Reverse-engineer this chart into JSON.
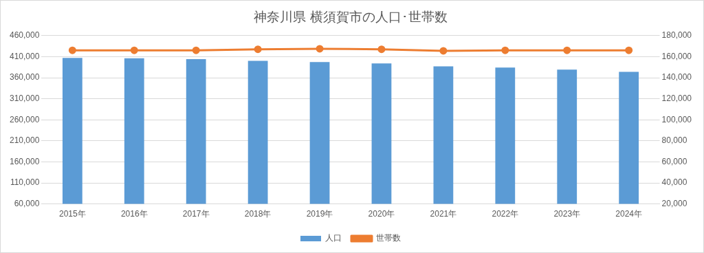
{
  "chart_data": {
    "type": "bar",
    "title": "神奈川県 横須賀市の人口･世帯数",
    "categories": [
      "2015年",
      "2016年",
      "2017年",
      "2018年",
      "2019年",
      "2020年",
      "2021年",
      "2022年",
      "2023年",
      "2024年"
    ],
    "series": [
      {
        "name": "人口",
        "type": "bar",
        "color": "#5b9bd5",
        "values": [
          407000,
          406000,
          404000,
          400000,
          397000,
          394000,
          387000,
          384000,
          379000,
          374000
        ]
      },
      {
        "name": "世帯数",
        "type": "line",
        "axis": "y2",
        "color": "#ed7d31",
        "values": [
          166000,
          166000,
          166000,
          167000,
          167500,
          167000,
          165500,
          166000,
          166000,
          166000
        ]
      }
    ],
    "ylim": [
      60000,
      460000
    ],
    "yticks": [
      {
        "value": 60000,
        "label": "60,000"
      },
      {
        "value": 110000,
        "label": "110,000"
      },
      {
        "value": 160000,
        "label": "160,000"
      },
      {
        "value": 210000,
        "label": "210,000"
      },
      {
        "value": 260000,
        "label": "260,000"
      },
      {
        "value": 310000,
        "label": "310,000"
      },
      {
        "value": 360000,
        "label": "360,000"
      },
      {
        "value": 410000,
        "label": "410,000"
      },
      {
        "value": 460000,
        "label": "460,000"
      }
    ],
    "y2lim": [
      20000,
      180000
    ],
    "y2ticks": [
      {
        "value": 20000,
        "label": "20,000"
      },
      {
        "value": 40000,
        "label": "40,000"
      },
      {
        "value": 60000,
        "label": "60,000"
      },
      {
        "value": 80000,
        "label": "80,000"
      },
      {
        "value": 100000,
        "label": "100,000"
      },
      {
        "value": 120000,
        "label": "120,000"
      },
      {
        "value": 140000,
        "label": "140,000"
      },
      {
        "value": 160000,
        "label": "160,000"
      },
      {
        "value": 180000,
        "label": "180,000"
      }
    ],
    "grid": "y",
    "legend": "bottom",
    "marker": "circle"
  }
}
